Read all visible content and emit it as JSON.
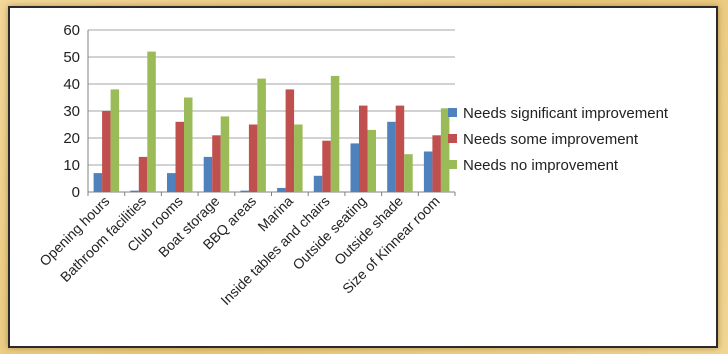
{
  "chart_data": {
    "type": "bar",
    "categories": [
      "Opening hours",
      "Bathroom facilities",
      "Club rooms",
      "Boat storage",
      "BBQ areas",
      "Marina",
      "Inside tables and chairs",
      "Outside seating",
      "Outside shade",
      "Size of Kinnear room"
    ],
    "series": [
      {
        "name": "Needs significant improvement",
        "color": "#4f81bd",
        "values": [
          7,
          0.5,
          7,
          13,
          0.5,
          1.5,
          6,
          18,
          26,
          15
        ]
      },
      {
        "name": "Needs some improvement",
        "color": "#c0504d",
        "values": [
          30,
          13,
          26,
          21,
          25,
          38,
          19,
          32,
          32,
          21
        ]
      },
      {
        "name": "Needs no improvement",
        "color": "#9bbb59",
        "values": [
          38,
          52,
          35,
          28,
          42,
          25,
          43,
          23,
          14,
          31
        ]
      }
    ],
    "yticks": [
      0,
      10,
      20,
      30,
      40,
      50,
      60
    ],
    "ylim": [
      0,
      60
    ],
    "grid": true,
    "legend": "right"
  }
}
